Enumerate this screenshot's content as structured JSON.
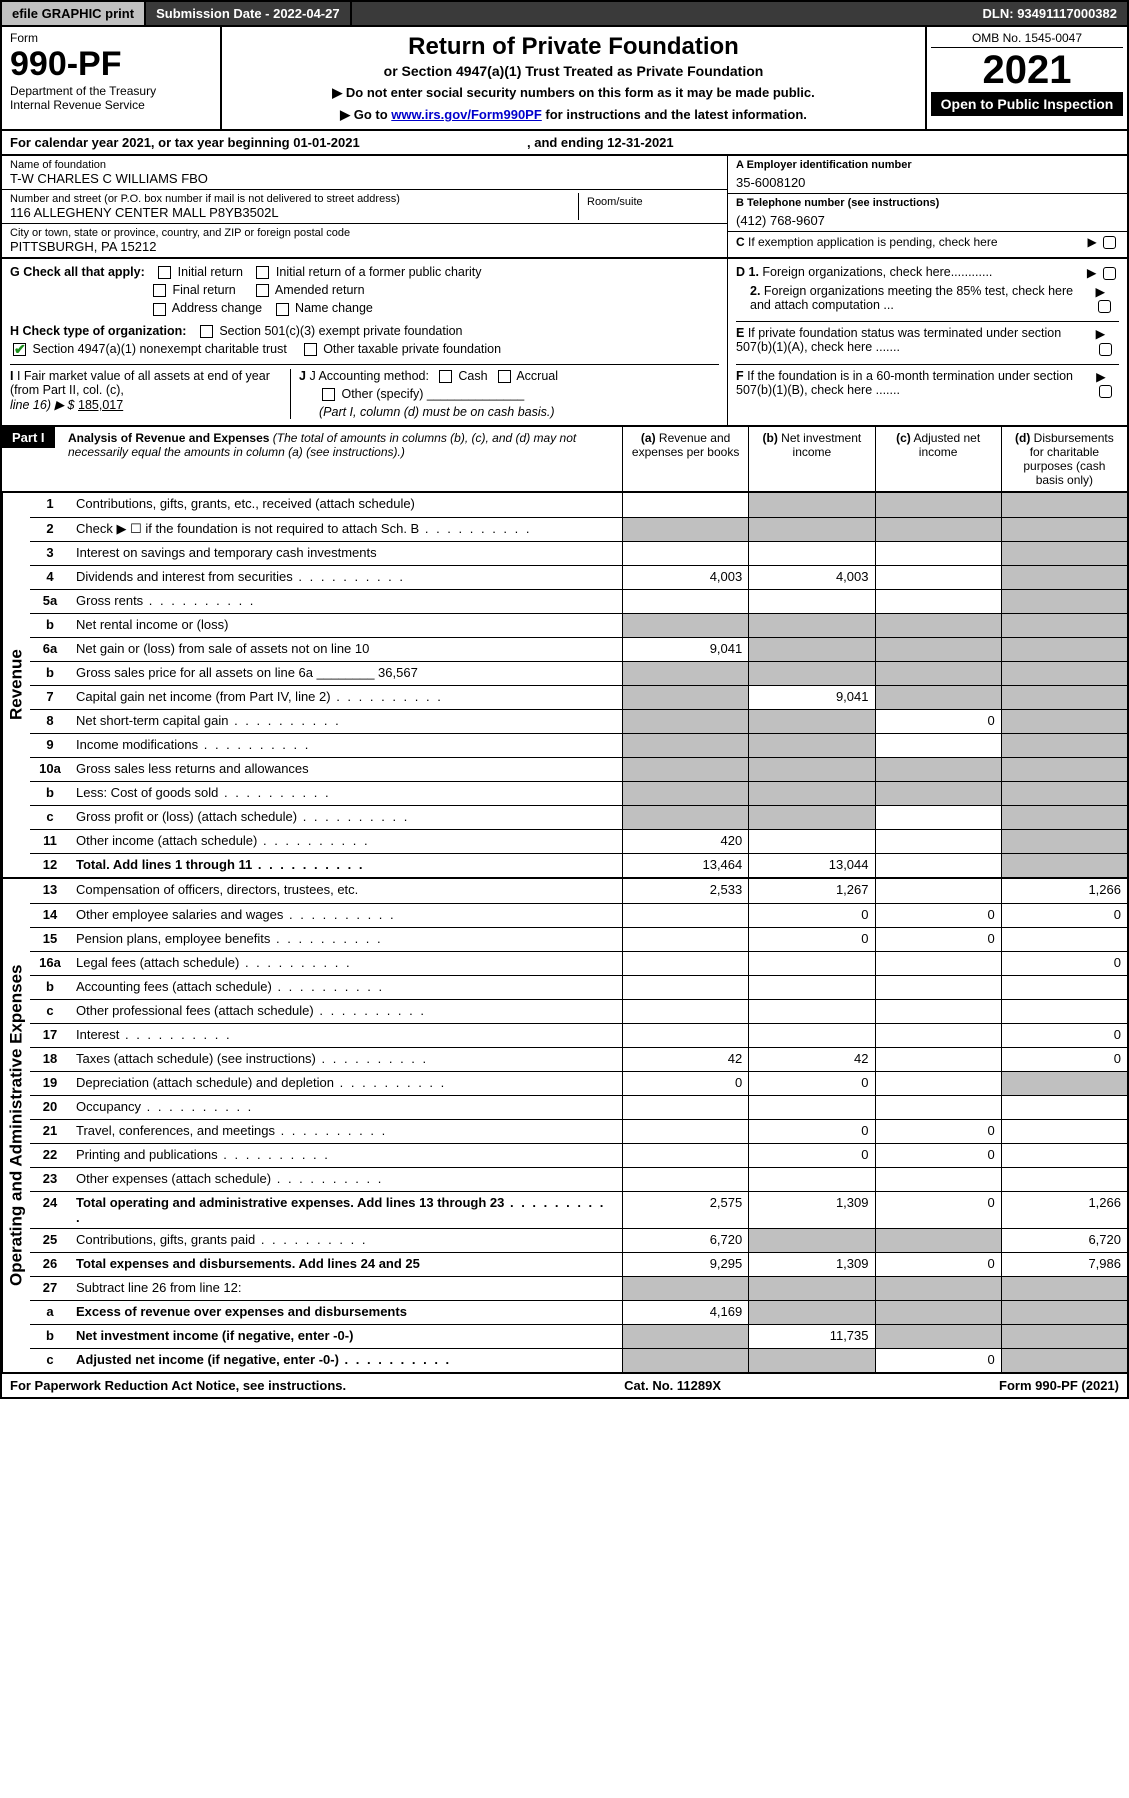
{
  "topbar": {
    "efile": "efile GRAPHIC print",
    "submission_label": "Submission Date - 2022-04-27",
    "dln": "DLN: 93491117000382"
  },
  "header": {
    "form_word": "Form",
    "form_number": "990-PF",
    "dept": "Department of the Treasury",
    "irs": "Internal Revenue Service",
    "title": "Return of Private Foundation",
    "subtitle": "or Section 4947(a)(1) Trust Treated as Private Foundation",
    "instr1": "▶ Do not enter social security numbers on this form as it may be made public.",
    "instr2_pre": "▶ Go to ",
    "instr2_link": "www.irs.gov/Form990PF",
    "instr2_post": " for instructions and the latest information.",
    "omb": "OMB No. 1545-0047",
    "year": "2021",
    "open": "Open to Public Inspection"
  },
  "cal_year": {
    "text_pre": "For calendar year 2021, or tax year beginning 01-01-2021",
    "text_mid": ", and ending 12-31-2021"
  },
  "info": {
    "name_label": "Name of foundation",
    "name": "T-W CHARLES C WILLIAMS FBO",
    "addr_label": "Number and street (or P.O. box number if mail is not delivered to street address)",
    "addr": "116 ALLEGHENY CENTER MALL P8YB3502L",
    "room_label": "Room/suite",
    "room": "",
    "city_label": "City or town, state or province, country, and ZIP or foreign postal code",
    "city": "PITTSBURGH, PA  15212",
    "ein_label": "A Employer identification number",
    "ein": "35-6008120",
    "tel_label": "B Telephone number (see instructions)",
    "tel": "(412) 768-9607",
    "c_label": "C If exemption application is pending, check here"
  },
  "checks": {
    "g_label": "G Check all that apply:",
    "g_opts": [
      "Initial return",
      "Initial return of a former public charity",
      "Final return",
      "Amended return",
      "Address change",
      "Name change"
    ],
    "h_label": "H Check type of organization:",
    "h1": "Section 501(c)(3) exempt private foundation",
    "h2": "Section 4947(a)(1) nonexempt charitable trust",
    "h2_checked": true,
    "h3": "Other taxable private foundation",
    "i_label": "I Fair market value of all assets at end of year (from Part II, col. (c),",
    "i_line": "line 16) ▶ $",
    "i_val": "185,017",
    "j_label": "J Accounting method:",
    "j_cash": "Cash",
    "j_accrual": "Accrual",
    "j_other": "Other (specify)",
    "j_note": "(Part I, column (d) must be on cash basis.)",
    "d1": "D 1. Foreign organizations, check here............",
    "d2": "2. Foreign organizations meeting the 85% test, check here and attach computation ...",
    "e": "E If private foundation status was terminated under section 507(b)(1)(A), check here .......",
    "f": "F If the foundation is in a 60-month termination under section 507(b)(1)(B), check here .......",
    "arrow": "▶"
  },
  "part1": {
    "label": "Part I",
    "title": "Analysis of Revenue and Expenses",
    "title_note": " (The total of amounts in columns (b), (c), and (d) may not necessarily equal the amounts in column (a) (see instructions).)",
    "col_a": "(a) Revenue and expenses per books",
    "col_b": "(b) Net investment income",
    "col_c": "(c) Adjusted net income",
    "col_d": "(d) Disbursements for charitable purposes (cash basis only)"
  },
  "side_labels": {
    "revenue": "Revenue",
    "expenses": "Operating and Administrative Expenses"
  },
  "rows": [
    {
      "n": "1",
      "lbl": "Contributions, gifts, grants, etc., received (attach schedule)",
      "a": "",
      "b": "sh",
      "c": "sh",
      "d": "sh"
    },
    {
      "n": "2",
      "lbl": "Check ▶ ☐ if the foundation is not required to attach Sch. B",
      "a": "sh",
      "b": "sh",
      "c": "sh",
      "d": "sh",
      "dots": true
    },
    {
      "n": "3",
      "lbl": "Interest on savings and temporary cash investments",
      "a": "",
      "b": "",
      "c": "",
      "d": "sh"
    },
    {
      "n": "4",
      "lbl": "Dividends and interest from securities",
      "a": "4,003",
      "b": "4,003",
      "c": "",
      "d": "sh",
      "dots": true
    },
    {
      "n": "5a",
      "lbl": "Gross rents",
      "a": "",
      "b": "",
      "c": "",
      "d": "sh",
      "dots": true
    },
    {
      "n": "b",
      "lbl": "Net rental income or (loss)",
      "a": "sh",
      "b": "sh",
      "c": "sh",
      "d": "sh"
    },
    {
      "n": "6a",
      "lbl": "Net gain or (loss) from sale of assets not on line 10",
      "a": "9,041",
      "b": "sh",
      "c": "sh",
      "d": "sh"
    },
    {
      "n": "b",
      "lbl": "Gross sales price for all assets on line 6a ________ 36,567",
      "a": "sh",
      "b": "sh",
      "c": "sh",
      "d": "sh"
    },
    {
      "n": "7",
      "lbl": "Capital gain net income (from Part IV, line 2)",
      "a": "sh",
      "b": "9,041",
      "c": "sh",
      "d": "sh",
      "dots": true
    },
    {
      "n": "8",
      "lbl": "Net short-term capital gain",
      "a": "sh",
      "b": "sh",
      "c": "0",
      "d": "sh",
      "dots": true
    },
    {
      "n": "9",
      "lbl": "Income modifications",
      "a": "sh",
      "b": "sh",
      "c": "",
      "d": "sh",
      "dots": true
    },
    {
      "n": "10a",
      "lbl": "Gross sales less returns and allowances",
      "a": "sh",
      "b": "sh",
      "c": "sh",
      "d": "sh"
    },
    {
      "n": "b",
      "lbl": "Less: Cost of goods sold",
      "a": "sh",
      "b": "sh",
      "c": "sh",
      "d": "sh",
      "dots": true
    },
    {
      "n": "c",
      "lbl": "Gross profit or (loss) (attach schedule)",
      "a": "sh",
      "b": "sh",
      "c": "",
      "d": "sh",
      "dots": true
    },
    {
      "n": "11",
      "lbl": "Other income (attach schedule)",
      "a": "420",
      "b": "",
      "c": "",
      "d": "sh",
      "dots": true
    },
    {
      "n": "12",
      "lbl": "Total. Add lines 1 through 11",
      "a": "13,464",
      "b": "13,044",
      "c": "",
      "d": "sh",
      "bold": true,
      "dots": true
    }
  ],
  "exp_rows": [
    {
      "n": "13",
      "lbl": "Compensation of officers, directors, trustees, etc.",
      "a": "2,533",
      "b": "1,267",
      "c": "",
      "d": "1,266"
    },
    {
      "n": "14",
      "lbl": "Other employee salaries and wages",
      "a": "",
      "b": "0",
      "c": "0",
      "d": "0",
      "dots": true
    },
    {
      "n": "15",
      "lbl": "Pension plans, employee benefits",
      "a": "",
      "b": "0",
      "c": "0",
      "d": "",
      "dots": true
    },
    {
      "n": "16a",
      "lbl": "Legal fees (attach schedule)",
      "a": "",
      "b": "",
      "c": "",
      "d": "0",
      "dots": true
    },
    {
      "n": "b",
      "lbl": "Accounting fees (attach schedule)",
      "a": "",
      "b": "",
      "c": "",
      "d": "",
      "dots": true
    },
    {
      "n": "c",
      "lbl": "Other professional fees (attach schedule)",
      "a": "",
      "b": "",
      "c": "",
      "d": "",
      "dots": true
    },
    {
      "n": "17",
      "lbl": "Interest",
      "a": "",
      "b": "",
      "c": "",
      "d": "0",
      "dots": true
    },
    {
      "n": "18",
      "lbl": "Taxes (attach schedule) (see instructions)",
      "a": "42",
      "b": "42",
      "c": "",
      "d": "0",
      "dots": true
    },
    {
      "n": "19",
      "lbl": "Depreciation (attach schedule) and depletion",
      "a": "0",
      "b": "0",
      "c": "",
      "d": "sh",
      "dots": true
    },
    {
      "n": "20",
      "lbl": "Occupancy",
      "a": "",
      "b": "",
      "c": "",
      "d": "",
      "dots": true
    },
    {
      "n": "21",
      "lbl": "Travel, conferences, and meetings",
      "a": "",
      "b": "0",
      "c": "0",
      "d": "",
      "dots": true
    },
    {
      "n": "22",
      "lbl": "Printing and publications",
      "a": "",
      "b": "0",
      "c": "0",
      "d": "",
      "dots": true
    },
    {
      "n": "23",
      "lbl": "Other expenses (attach schedule)",
      "a": "",
      "b": "",
      "c": "",
      "d": "",
      "dots": true
    },
    {
      "n": "24",
      "lbl": "Total operating and administrative expenses. Add lines 13 through 23",
      "a": "2,575",
      "b": "1,309",
      "c": "0",
      "d": "1,266",
      "bold": true,
      "dots": true
    },
    {
      "n": "25",
      "lbl": "Contributions, gifts, grants paid",
      "a": "6,720",
      "b": "sh",
      "c": "sh",
      "d": "6,720",
      "dots": true
    },
    {
      "n": "26",
      "lbl": "Total expenses and disbursements. Add lines 24 and 25",
      "a": "9,295",
      "b": "1,309",
      "c": "0",
      "d": "7,986",
      "bold": true
    },
    {
      "n": "27",
      "lbl": "Subtract line 26 from line 12:",
      "a": "sh",
      "b": "sh",
      "c": "sh",
      "d": "sh"
    },
    {
      "n": "a",
      "lbl": "Excess of revenue over expenses and disbursements",
      "a": "4,169",
      "b": "sh",
      "c": "sh",
      "d": "sh",
      "bold": true
    },
    {
      "n": "b",
      "lbl": "Net investment income (if negative, enter -0-)",
      "a": "sh",
      "b": "11,735",
      "c": "sh",
      "d": "sh",
      "bold": true
    },
    {
      "n": "c",
      "lbl": "Adjusted net income (if negative, enter -0-)",
      "a": "sh",
      "b": "sh",
      "c": "0",
      "d": "sh",
      "bold": true,
      "dots": true
    }
  ],
  "footer": {
    "left": "For Paperwork Reduction Act Notice, see instructions.",
    "mid": "Cat. No. 11289X",
    "right": "Form 990-PF (2021)"
  },
  "colors": {
    "topbar_gray": "#c0c0c0",
    "topbar_dark": "#3a3a3a",
    "shade": "#c0c0c0",
    "black": "#000000",
    "link": "#0000cc",
    "check_green": "#1a8f1a"
  }
}
